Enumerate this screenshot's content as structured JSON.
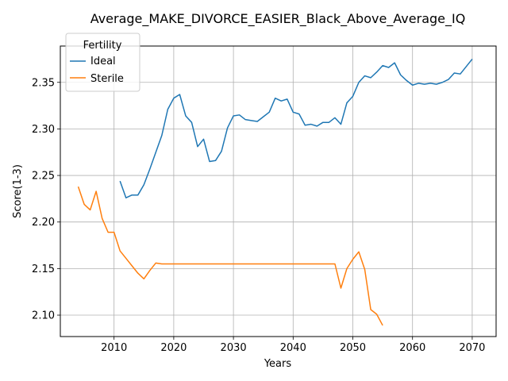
{
  "chart_data": {
    "type": "line",
    "title": "Average_MAKE_DIVORCE_EASIER_Black_Above_Average_IQ",
    "xlabel": "Years",
    "ylabel": "Score(1-3)",
    "xlim": [
      2001,
      2074
    ],
    "ylim": [
      2.077,
      2.389
    ],
    "x_ticks": [
      2010,
      2020,
      2030,
      2040,
      2050,
      2060,
      2070
    ],
    "y_ticks": [
      2.1,
      2.15,
      2.2,
      2.25,
      2.3,
      2.35
    ],
    "x_tick_labels": [
      "2010",
      "2020",
      "2030",
      "2040",
      "2050",
      "2060",
      "2070"
    ],
    "y_tick_labels": [
      "2.10",
      "2.15",
      "2.20",
      "2.25",
      "2.30",
      "2.35"
    ],
    "grid": true,
    "legend": {
      "title": "Fertility",
      "placement": "top-left"
    },
    "series": [
      {
        "name": "Ideal",
        "color": "#1f77b4",
        "x": [
          2011,
          2012,
          2013,
          2014,
          2015,
          2016,
          2017,
          2018,
          2019,
          2020,
          2021,
          2022,
          2023,
          2024,
          2025,
          2026,
          2027,
          2028,
          2029,
          2030,
          2031,
          2032,
          2033,
          2034,
          2035,
          2036,
          2037,
          2038,
          2039,
          2040,
          2041,
          2042,
          2043,
          2044,
          2045,
          2046,
          2047,
          2048,
          2049,
          2050,
          2051,
          2052,
          2053,
          2054,
          2055,
          2056,
          2057,
          2058,
          2059,
          2060,
          2061,
          2062,
          2063,
          2064,
          2065,
          2066,
          2067,
          2068,
          2069,
          2070
        ],
        "y": [
          2.244,
          2.226,
          2.229,
          2.229,
          2.24,
          2.257,
          2.275,
          2.293,
          2.321,
          2.333,
          2.337,
          2.314,
          2.307,
          2.281,
          2.289,
          2.265,
          2.266,
          2.276,
          2.301,
          2.314,
          2.315,
          2.31,
          2.309,
          2.308,
          2.313,
          2.318,
          2.333,
          2.33,
          2.332,
          2.318,
          2.316,
          2.304,
          2.305,
          2.303,
          2.307,
          2.307,
          2.312,
          2.305,
          2.328,
          2.335,
          2.35,
          2.357,
          2.355,
          2.361,
          2.368,
          2.366,
          2.371,
          2.358,
          2.352,
          2.347,
          2.349,
          2.348,
          2.349,
          2.348,
          2.35,
          2.353,
          2.36,
          2.359,
          2.367,
          2.375
        ]
      },
      {
        "name": "Sterile",
        "color": "#ff7f0e",
        "x": [
          2004,
          2005,
          2006,
          2007,
          2008,
          2009,
          2010,
          2011,
          2012,
          2013,
          2014,
          2015,
          2016,
          2017,
          2018,
          2019,
          2020,
          2021,
          2022,
          2023,
          2024,
          2025,
          2026,
          2027,
          2028,
          2029,
          2030,
          2031,
          2032,
          2033,
          2034,
          2035,
          2036,
          2037,
          2038,
          2039,
          2040,
          2041,
          2042,
          2043,
          2044,
          2045,
          2046,
          2047,
          2048,
          2049,
          2050,
          2051,
          2052,
          2053,
          2054,
          2055
        ],
        "y": [
          2.238,
          2.219,
          2.213,
          2.233,
          2.204,
          2.189,
          2.189,
          2.169,
          2.161,
          2.153,
          2.145,
          2.139,
          2.148,
          2.156,
          2.155,
          2.155,
          2.155,
          2.155,
          2.155,
          2.155,
          2.155,
          2.155,
          2.155,
          2.155,
          2.155,
          2.155,
          2.155,
          2.155,
          2.155,
          2.155,
          2.155,
          2.155,
          2.155,
          2.155,
          2.155,
          2.155,
          2.155,
          2.155,
          2.155,
          2.155,
          2.155,
          2.155,
          2.155,
          2.155,
          2.129,
          2.15,
          2.16,
          2.168,
          2.149,
          2.106,
          2.101,
          2.089
        ]
      }
    ]
  }
}
